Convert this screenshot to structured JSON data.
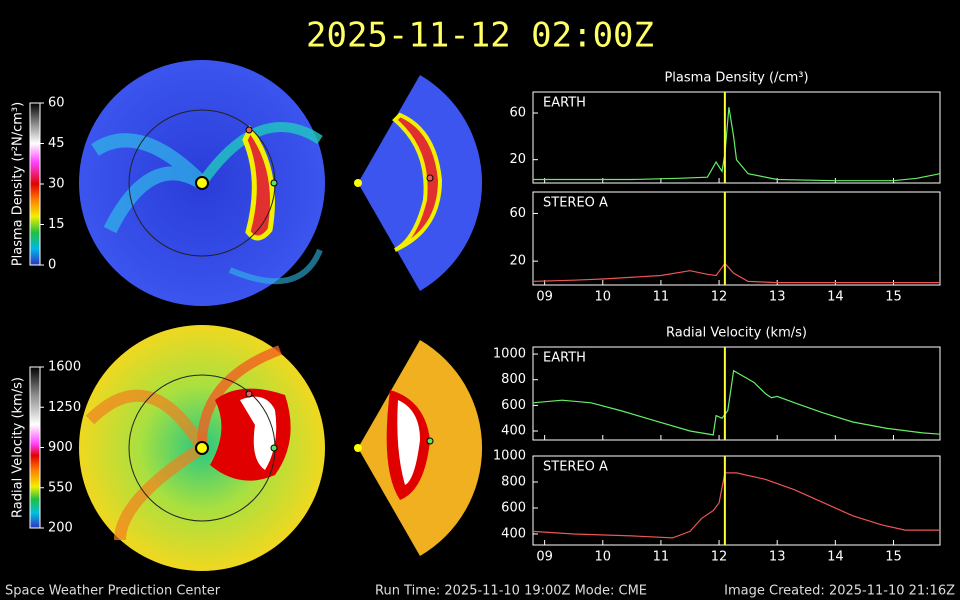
{
  "header": {
    "title": "2025-11-12  02:00Z"
  },
  "colorbars": [
    {
      "label": "Plasma Density (r²N/cm³)",
      "lim": [
        0,
        60
      ],
      "ticks": [
        0,
        15,
        30,
        45,
        60
      ],
      "stops": [
        [
          0,
          "#3030c0"
        ],
        [
          6,
          "#00b8e8"
        ],
        [
          12,
          "#20c040"
        ],
        [
          18,
          "#f0f000"
        ],
        [
          24,
          "#ff8000"
        ],
        [
          30,
          "#e00000"
        ],
        [
          38,
          "#ff40ff"
        ],
        [
          45,
          "#ffffff"
        ],
        [
          52,
          "#909090"
        ],
        [
          60,
          "#000000"
        ]
      ]
    },
    {
      "label": "Radial Velocity (km/s)",
      "lim": [
        200,
        1600
      ],
      "ticks": [
        200,
        550,
        900,
        1250,
        1600
      ],
      "stops": [
        [
          200,
          "#3030c0"
        ],
        [
          330,
          "#00c0e0"
        ],
        [
          450,
          "#20c040"
        ],
        [
          560,
          "#f0f000"
        ],
        [
          700,
          "#ff8000"
        ],
        [
          830,
          "#e00000"
        ],
        [
          930,
          "#ff40ff"
        ],
        [
          1100,
          "#ffffff"
        ],
        [
          1350,
          "#909090"
        ],
        [
          1600,
          "#000000"
        ]
      ]
    }
  ],
  "chart_data": [
    {
      "type": "line",
      "title": "Plasma Density (/cm³)",
      "panel_label": "EARTH",
      "xlim": [
        8.8,
        15.8
      ],
      "xticks": [
        9,
        10,
        11,
        12,
        13,
        14,
        15
      ],
      "ylim": [
        0,
        78
      ],
      "yticks": [
        20,
        60
      ],
      "marker_x": 12.1,
      "series": [
        {
          "name": "EARTH",
          "color": "#66ee66",
          "x": [
            8.8,
            9.5,
            10.5,
            11.3,
            11.8,
            11.95,
            12.05,
            12.1,
            12.17,
            12.25,
            12.3,
            12.5,
            13.0,
            14.0,
            15.0,
            15.4,
            15.8
          ],
          "values": [
            3,
            3,
            3,
            4,
            5,
            18,
            10,
            25,
            65,
            40,
            20,
            8,
            3,
            2,
            2,
            4,
            8
          ]
        }
      ]
    },
    {
      "type": "line",
      "panel_label": "STEREO A",
      "xlim": [
        8.8,
        15.8
      ],
      "xticks": [
        {
          "value": 9,
          "label": "09"
        },
        10,
        11,
        12,
        13,
        14,
        15
      ],
      "ylim": [
        0,
        78
      ],
      "yticks": [
        20,
        60
      ],
      "marker_x": 12.1,
      "series": [
        {
          "name": "STEREO A",
          "color": "#ee5555",
          "x": [
            8.8,
            9.5,
            10.0,
            11.0,
            11.5,
            11.8,
            11.95,
            12.1,
            12.25,
            12.5,
            13.0,
            14.0,
            15.0,
            15.8
          ],
          "values": [
            3,
            4,
            5,
            8,
            12,
            9,
            8,
            18,
            10,
            3,
            2,
            2,
            2,
            2
          ]
        }
      ]
    },
    {
      "type": "line",
      "title": "Radial Velocity (km/s)",
      "panel_label": "EARTH",
      "xlim": [
        8.8,
        15.8
      ],
      "xticks": [
        9,
        10,
        11,
        12,
        13,
        14,
        15
      ],
      "ylim": [
        330,
        1055
      ],
      "yticks": [
        400,
        600,
        800,
        1000
      ],
      "marker_x": 12.1,
      "series": [
        {
          "name": "EARTH",
          "color": "#66ee66",
          "x": [
            8.8,
            9.3,
            9.8,
            10.3,
            10.9,
            11.5,
            11.9,
            11.95,
            12.05,
            12.15,
            12.25,
            12.6,
            12.8,
            12.9,
            13.0,
            13.3,
            13.8,
            14.3,
            14.9,
            15.5,
            15.8
          ],
          "values": [
            620,
            640,
            620,
            560,
            480,
            400,
            370,
            520,
            500,
            560,
            870,
            780,
            690,
            660,
            670,
            620,
            540,
            470,
            420,
            385,
            375
          ]
        }
      ]
    },
    {
      "type": "line",
      "panel_label": "STEREO A",
      "xlim": [
        8.8,
        15.8
      ],
      "xticks": [
        {
          "value": 9,
          "label": "09"
        },
        10,
        11,
        12,
        13,
        14,
        15
      ],
      "ylim": [
        315,
        1000
      ],
      "yticks": [
        400,
        600,
        800,
        1000
      ],
      "marker_x": 12.1,
      "series": [
        {
          "name": "STEREO A",
          "color": "#ee5555",
          "x": [
            8.8,
            9.5,
            10.5,
            11.2,
            11.5,
            11.7,
            11.9,
            12.0,
            12.1,
            12.3,
            12.8,
            13.3,
            13.8,
            14.3,
            14.8,
            15.2,
            15.8
          ],
          "values": [
            420,
            400,
            385,
            370,
            420,
            520,
            580,
            640,
            870,
            870,
            820,
            740,
            640,
            540,
            470,
            430,
            430
          ]
        }
      ]
    }
  ],
  "footer": {
    "left": "Space Weather Prediction Center",
    "center": "Run Time: 2025-11-10 19:00Z  Mode: CME",
    "right": "Image Created: 2025-11-10 21:16Z"
  }
}
